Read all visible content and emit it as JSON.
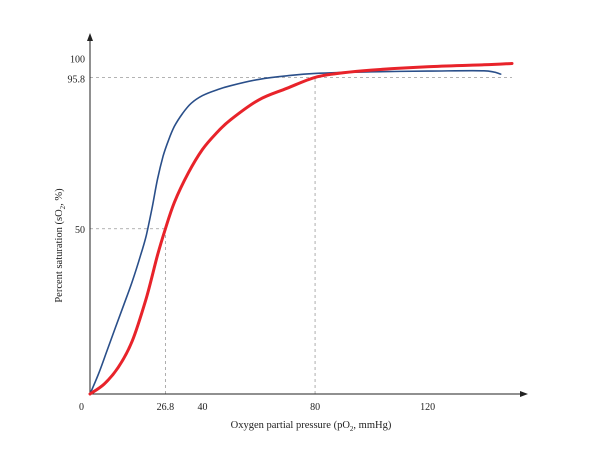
{
  "chart_data": {
    "type": "line",
    "x_axis": {
      "label": "Oxygen partial pressure (pO",
      "label_sub": "2",
      "label_tail": ", mmHg)",
      "range": [
        0,
        150
      ],
      "ticks": [
        {
          "value": 26.8,
          "label": "26.8"
        },
        {
          "value": 40,
          "label": "40"
        },
        {
          "value": 80,
          "label": "80"
        },
        {
          "value": 120,
          "label": "120"
        }
      ],
      "origin_label": "0"
    },
    "y_axis": {
      "label": "Percent saturation (sO",
      "label_sub": "2",
      "label_tail": ", %)",
      "range": [
        0,
        105
      ],
      "ticks": [
        {
          "value": 50,
          "label": "50"
        },
        {
          "value": 95.8,
          "label": "95.8"
        },
        {
          "value": 100,
          "label": "100"
        }
      ]
    },
    "reference_lines": [
      {
        "axis": "x",
        "value": 26.8,
        "y_to": 50
      },
      {
        "axis": "y",
        "value": 50,
        "x_to": 26.8
      },
      {
        "axis": "x",
        "value": 80,
        "y_to": 95.8
      },
      {
        "axis": "y",
        "value": 95.8,
        "x_to": 150
      }
    ],
    "series": [
      {
        "color": "#2a4f8a",
        "x": [
          0,
          3,
          6,
          9,
          12,
          15,
          18,
          20,
          22,
          24,
          26,
          28,
          30,
          33,
          36,
          40,
          45,
          50,
          60,
          70,
          80,
          100,
          120,
          140,
          146
        ],
        "y": [
          0,
          6,
          13,
          20,
          27,
          34,
          42,
          48,
          56,
          65,
          72,
          77,
          81,
          85,
          88,
          90.3,
          92,
          93.3,
          95.2,
          96.3,
          97,
          97.5,
          97.7,
          97.8,
          96.8
        ]
      },
      {
        "color": "#e8232a",
        "x": [
          0,
          5,
          10,
          15,
          20,
          24,
          26.8,
          30,
          35,
          40,
          45,
          50,
          60,
          70,
          80,
          90,
          100,
          120,
          140,
          150
        ],
        "y": [
          0,
          3,
          8,
          16,
          29,
          42,
          50,
          58,
          67,
          74,
          79,
          83,
          89,
          92.5,
          95.8,
          97.2,
          98,
          99,
          99.6,
          100
        ]
      }
    ]
  }
}
